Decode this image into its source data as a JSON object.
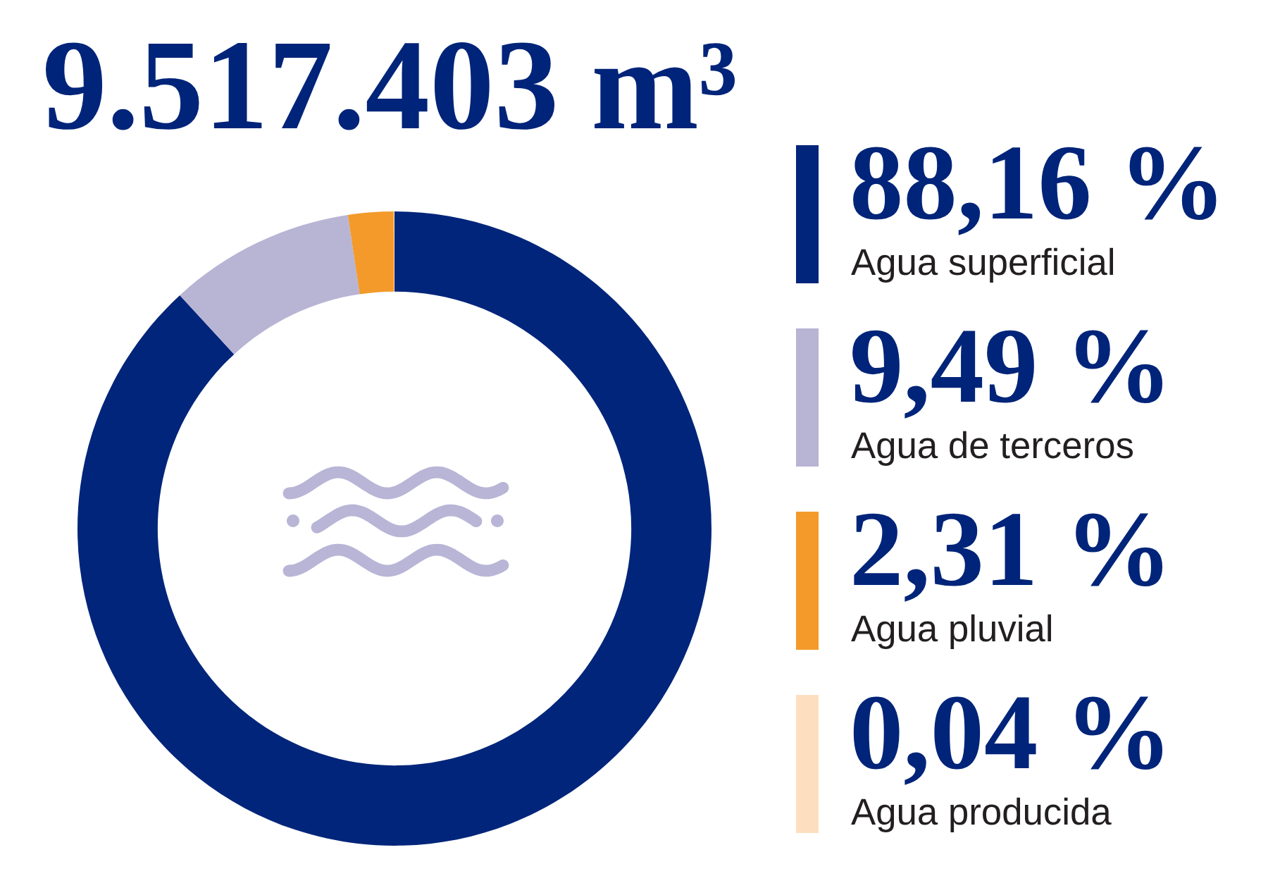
{
  "chart_data": {
    "type": "donut",
    "title": "9.517.403 m³",
    "categories": [
      "Agua superficial",
      "Agua de terceros",
      "Agua pluvial",
      "Agua producida"
    ],
    "values": [
      88.16,
      9.49,
      2.31,
      0.04
    ],
    "colors": [
      "#00257a",
      "#b8b4d4",
      "#f39a2b",
      "#fddfbf"
    ],
    "value_labels": [
      "88,16 %",
      "9,49 %",
      "2,31 %",
      "0,04 %"
    ],
    "legend": "right"
  }
}
